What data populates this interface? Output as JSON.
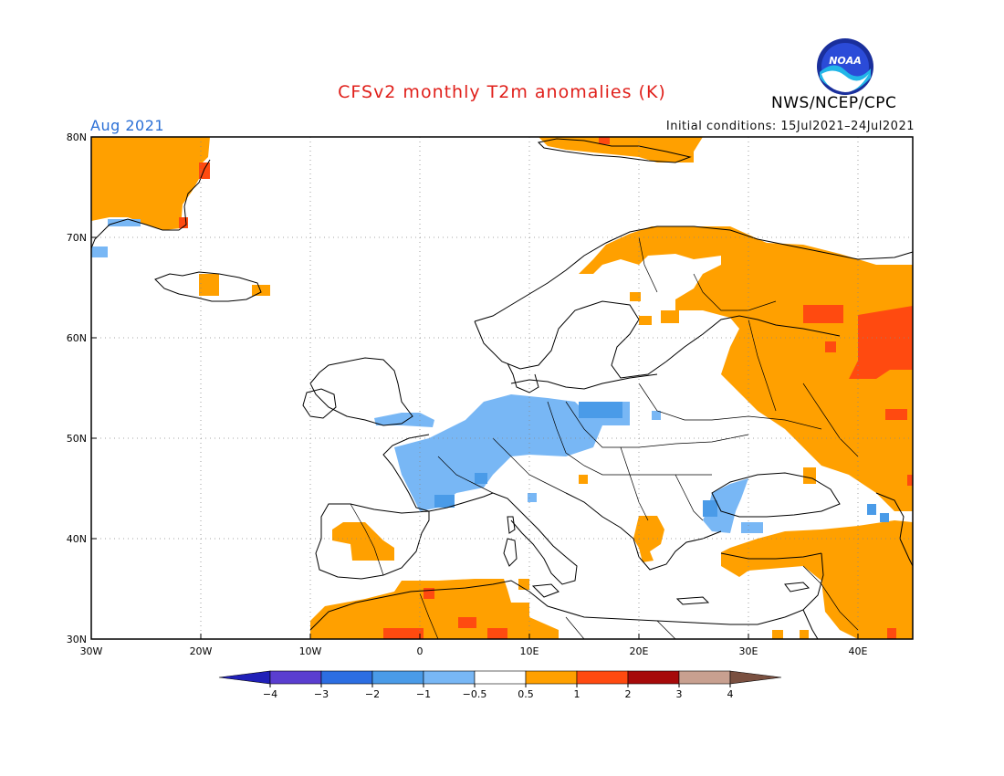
{
  "header": {
    "title": "CFSv2 monthly T2m anomalies (K)",
    "month": "Aug 2021",
    "initial_conditions": "Initial conditions: 15Jul2021–24Jul2021",
    "org": "NWS/NCEP/CPC",
    "logo_text": "NOAA"
  },
  "colors": {
    "title": "#e0201b",
    "month": "#2a6fd6",
    "cold_light": "#78b7f5",
    "cold_mid": "#4a9be8",
    "warm_light": "#ffa000",
    "warm_mid": "#ff4a10"
  },
  "axes": {
    "lat_labels": [
      "80N",
      "70N",
      "60N",
      "50N",
      "40N",
      "30N"
    ],
    "lon_labels": [
      "30W",
      "20W",
      "10W",
      "0",
      "10E",
      "20E",
      "30E",
      "40E"
    ]
  },
  "colorbar": {
    "labels": [
      "−4",
      "−3",
      "−2",
      "−1",
      "−0.5",
      "0.5",
      "1",
      "2",
      "3",
      "4"
    ],
    "colors": [
      "#2020b8",
      "#5a3ed0",
      "#2c6ee2",
      "#4a9be8",
      "#78b7f5",
      "#ffffff",
      "#ffa000",
      "#ff4a10",
      "#a60a0a",
      "#c8a090",
      "#7a5040"
    ]
  }
}
